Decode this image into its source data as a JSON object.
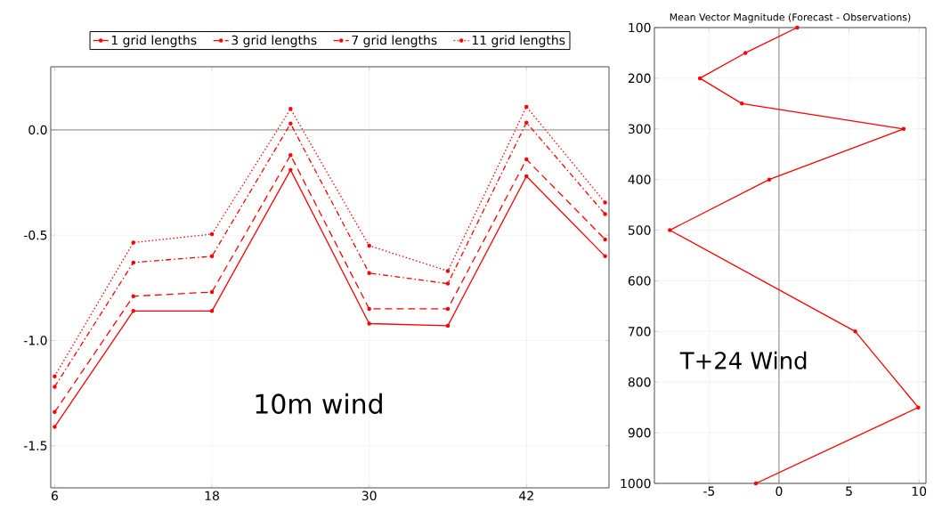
{
  "chart_data": [
    {
      "type": "line",
      "x": [
        6,
        12,
        18,
        24,
        30,
        36,
        42,
        48
      ],
      "xlim": [
        5.7,
        48.3
      ],
      "ylim": [
        -1.7,
        0.3
      ],
      "xticks": [
        6,
        18,
        30,
        42
      ],
      "yticks": [
        {
          "value": 0,
          "label": "0.0"
        },
        -0.5,
        {
          "value": -1,
          "label": "-1.0"
        },
        -1.5
      ],
      "grid": true,
      "legend": "top",
      "marker": "circle",
      "series": [
        {
          "name": "1 grid lengths",
          "color": "#ff0000",
          "line_style": "solid",
          "values": [
            -1.41,
            -0.86,
            -0.86,
            -0.19,
            -0.92,
            -0.93,
            -0.22,
            -0.6
          ]
        },
        {
          "name": "3 grid lengths",
          "color": "#ff0000",
          "line_style": "dashed",
          "values": [
            -1.34,
            -0.79,
            -0.77,
            -0.12,
            -0.85,
            -0.85,
            -0.14,
            -0.52
          ]
        },
        {
          "name": "7 grid lengths",
          "color": "#ff0000",
          "line_style": "dashdot",
          "values": [
            -1.22,
            -0.63,
            -0.6,
            0.03,
            -0.68,
            -0.73,
            0.035,
            -0.4
          ]
        },
        {
          "name": "11 grid lengths",
          "color": "#ff0000",
          "line_style": "dotted",
          "values": [
            -1.17,
            -0.535,
            -0.495,
            0.1,
            -0.55,
            -0.67,
            0.11,
            -0.345
          ]
        }
      ],
      "ref_lines": [
        {
          "axis": "y",
          "value": 0,
          "color": "#888888"
        }
      ],
      "annotations": [
        "10m wind"
      ]
    },
    {
      "type": "line",
      "title": "Mean Vector Magnitude (Forecast - Observations)",
      "xlim": [
        -8.9,
        10.5
      ],
      "ylim": [
        1000,
        100
      ],
      "xticks": [
        -5,
        0,
        5,
        10
      ],
      "yticks": [
        100,
        200,
        300,
        400,
        500,
        600,
        700,
        800,
        900,
        1000
      ],
      "grid": true,
      "marker": "circle",
      "series": [
        {
          "color": "#ff0000",
          "line_style": "solid",
          "x": [
            1.3,
            -2.4,
            -5.65,
            -2.65,
            8.9,
            -0.7,
            -7.8,
            5.45,
            9.95,
            -1.65
          ],
          "values": [
            100,
            150,
            200,
            250,
            300,
            400,
            500,
            700,
            850,
            1000
          ]
        }
      ],
      "ref_lines": [
        {
          "axis": "x",
          "value": 0,
          "color": "#888888"
        }
      ],
      "annotations": [
        "T+24 Wind"
      ]
    }
  ]
}
